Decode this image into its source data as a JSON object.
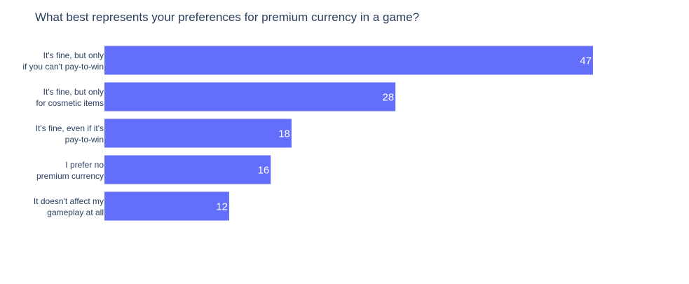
{
  "chart_data": {
    "type": "bar",
    "orientation": "horizontal",
    "title": "What best represents your preferences for premium currency in a game?",
    "categories": [
      [
        "It's fine, but only",
        "if you can't pay-to-win"
      ],
      [
        "It's fine, but only",
        "for cosmetic items"
      ],
      [
        "It's fine, even if it's",
        "pay-to-win"
      ],
      [
        "I prefer no",
        "premium currency"
      ],
      [
        "It doesn't affect my",
        "gameplay at all"
      ]
    ],
    "values": [
      47,
      28,
      18,
      16,
      12
    ],
    "data_labels": [
      "47",
      "28",
      "18",
      "16",
      "12"
    ],
    "xlim": [
      0,
      49.5
    ],
    "grid": false,
    "legend": "none",
    "bar_color": "#636efa"
  }
}
